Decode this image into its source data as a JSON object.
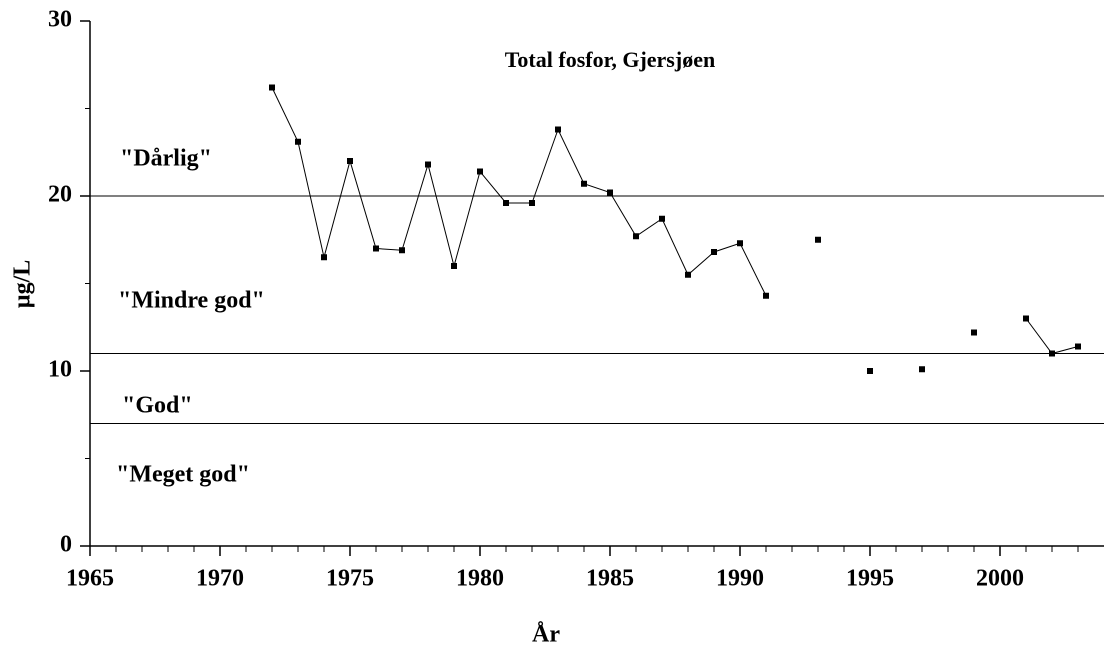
{
  "chart_data": {
    "type": "line",
    "title": "Total fosfor, Gjersjøen",
    "x_label": "År",
    "y_label": "µg/L",
    "x": [
      1972,
      1973,
      1974,
      1975,
      1976,
      1977,
      1978,
      1979,
      1980,
      1981,
      1982,
      1983,
      1984,
      1985,
      1986,
      1987,
      1988,
      1989,
      1990,
      1991,
      1992,
      1993,
      1994,
      1995,
      1996,
      1997,
      1998,
      1999,
      2000,
      2001,
      2002,
      2003
    ],
    "series": [
      {
        "name": "Total fosfor",
        "color": "#000000",
        "values": [
          26.2,
          23.1,
          16.5,
          22.0,
          17.0,
          16.9,
          21.8,
          16.0,
          21.4,
          19.6,
          19.6,
          23.8,
          20.7,
          20.2,
          17.7,
          18.7,
          15.5,
          16.8,
          17.3,
          14.3,
          null,
          17.5,
          null,
          10.0,
          null,
          10.1,
          null,
          12.2,
          null,
          13.0,
          11.0,
          11.4
        ]
      }
    ],
    "xlim": [
      1965,
      2004
    ],
    "ylim": [
      0,
      30
    ],
    "xticks": [
      1965,
      1970,
      1975,
      1980,
      1985,
      1990,
      1995,
      2000
    ],
    "yticks": [
      0,
      10,
      20,
      30
    ],
    "xminorticks": [
      1966,
      1967,
      1968,
      1969,
      1971,
      1972,
      1973,
      1974,
      1976,
      1977,
      1978,
      1979,
      1981,
      1982,
      1983,
      1984,
      1986,
      1987,
      1988,
      1989,
      1991,
      1992,
      1993,
      1994,
      1996,
      1997,
      1998,
      1999,
      2001,
      2002,
      2003
    ],
    "yminorticks": [
      5,
      15,
      25
    ],
    "thresholds": [
      20,
      11,
      7
    ],
    "annotations": [
      "\"Dårlig\"",
      "\"Mindre god\"",
      "\"God\"",
      "\"Meget god\""
    ]
  }
}
